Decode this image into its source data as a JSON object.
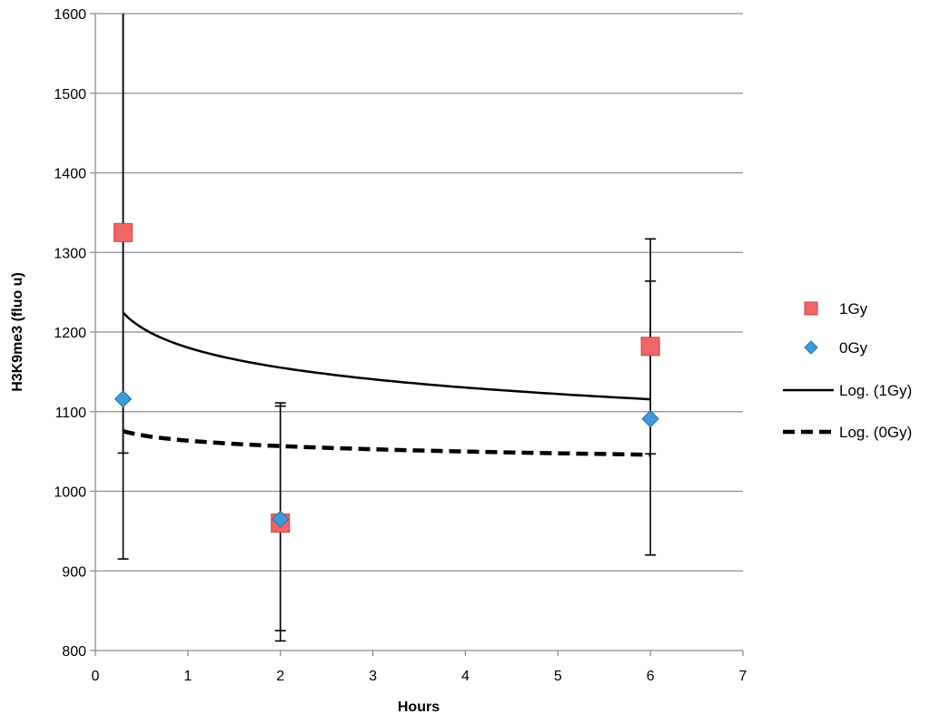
{
  "chart_data": {
    "type": "scatter",
    "title": "",
    "xlabel": "Hours",
    "ylabel": "H3K9me3 (fluo u)",
    "xlim": [
      0,
      7
    ],
    "ylim": [
      800,
      1600
    ],
    "xticks": [
      0,
      1,
      2,
      3,
      4,
      5,
      6,
      7
    ],
    "yticks": [
      800,
      900,
      1000,
      1100,
      1200,
      1300,
      1400,
      1500,
      1600
    ],
    "grid": true,
    "legend_position": "right",
    "series": [
      {
        "name": "1Gy",
        "marker": "square",
        "color": "#f26565",
        "x": [
          0.3,
          2,
          6
        ],
        "y": [
          1325,
          960,
          1182
        ],
        "err_low": [
          915,
          812,
          1047
        ],
        "err_high": [
          1600,
          1111,
          1317
        ]
      },
      {
        "name": "0Gy",
        "marker": "diamond",
        "color": "#3f9ad9",
        "x": [
          0.3,
          2,
          6
        ],
        "y": [
          1116,
          965,
          1091
        ],
        "err_low": [
          1048,
          825,
          920
        ],
        "err_high": [
          1600,
          1107,
          1264
        ]
      }
    ],
    "trendlines": [
      {
        "name": "Log. (1Gy)",
        "style": "solid",
        "color": "#000000",
        "a": 1180.5,
        "b": -36.22,
        "x_range": [
          0.3,
          6
        ]
      },
      {
        "name": "Log. (0Gy)",
        "style": "dashed",
        "color": "#000000",
        "a": 1063.6,
        "b": -9.85,
        "x_range": [
          0.3,
          6
        ]
      }
    ],
    "legend": [
      "1Gy",
      "0Gy",
      "Log. (1Gy)",
      "Log. (0Gy)"
    ]
  }
}
